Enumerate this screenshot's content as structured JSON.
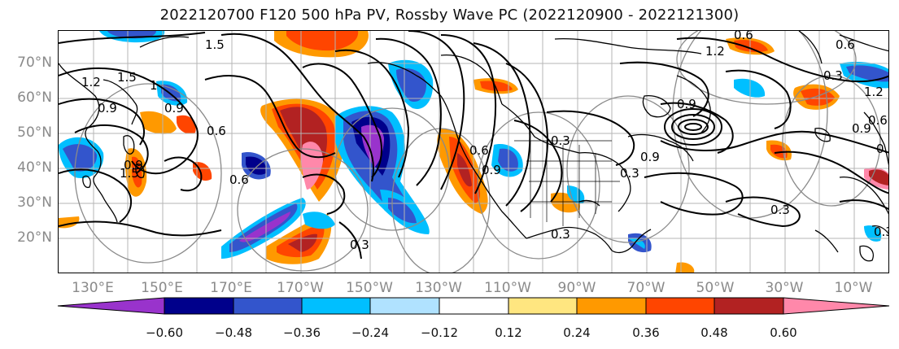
{
  "title": "2022120700 F120 500 hPa PV, Rossby Wave PC (2022120900 - 2022121300)",
  "lat_labels": [
    "70°N",
    "60°N",
    "50°N",
    "40°N",
    "30°N",
    "20°N"
  ],
  "lon_labels": [
    "130°E",
    "150°E",
    "170°E",
    "170°W",
    "150°W",
    "130°W",
    "110°W",
    "90°W",
    "70°W",
    "50°W",
    "30°W",
    "10°W"
  ],
  "colorbar": {
    "colors": [
      "#9933cc",
      "#00008b",
      "#3355cc",
      "#00bfff",
      "#b0e2ff",
      "#ffffff",
      "#ffe680",
      "#ff9900",
      "#ff4500",
      "#b22222",
      "#ff88aa"
    ],
    "labels": [
      "−0.60",
      "−0.48",
      "−0.36",
      "−0.24",
      "−0.12",
      "0.12",
      "0.24",
      "0.36",
      "0.48",
      "0.60"
    ]
  },
  "contour_labels": [
    "1.5",
    "1.2",
    "1.5",
    "0.9",
    "1",
    "0.9",
    "0.6",
    "0.6",
    "0.3",
    "1.5",
    "0.6",
    "0.9",
    "0.3",
    "0.9",
    "1.2",
    "0.6",
    "0.6",
    "0.3",
    "1.2",
    "0.9",
    "0.3",
    "0.3",
    "0.3",
    "0.6",
    "0.9",
    "0.9",
    "0.3",
    "0.3"
  ],
  "colors": {
    "contour": "#000000",
    "gray_circle": "#8a8a8a",
    "grid": "#b5b5b5",
    "coast": "#000000",
    "axis_label": "#8a8a8a"
  }
}
